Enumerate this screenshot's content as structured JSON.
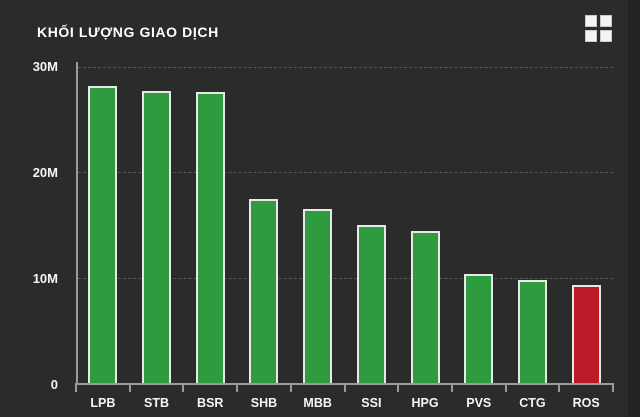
{
  "header": {
    "title": "KHỐI LƯỢNG GIAO DỊCH",
    "menu_icon": "grid-2x2-icon"
  },
  "colors": {
    "background": "#2b2b2b",
    "right_edge_strip": "#232323",
    "bar_green": "#2e9b3f",
    "bar_red": "#bb1b26",
    "bar_border": "#e8e8e8",
    "axis": "#9a9a9a",
    "gridline": "#565656",
    "text": "#ffffff"
  },
  "chart_data": {
    "type": "bar",
    "title": "KHỐI LƯỢNG GIAO DỊCH",
    "categories": [
      "LPB",
      "STB",
      "BSR",
      "SHB",
      "MBB",
      "SSI",
      "HPG",
      "PVS",
      "CTG",
      "ROS"
    ],
    "values": [
      28.2,
      27.7,
      27.6,
      17.5,
      16.5,
      15.0,
      14.5,
      10.4,
      9.8,
      9.4
    ],
    "value_unit": "M",
    "bar_colors": [
      "#2e9b3f",
      "#2e9b3f",
      "#2e9b3f",
      "#2e9b3f",
      "#2e9b3f",
      "#2e9b3f",
      "#2e9b3f",
      "#2e9b3f",
      "#2e9b3f",
      "#bb1b26"
    ],
    "xlabel": "",
    "ylabel": "",
    "ylim": [
      0,
      30
    ],
    "yticks": [
      {
        "value": 0,
        "label": "0"
      },
      {
        "value": 10,
        "label": "10M"
      },
      {
        "value": 20,
        "label": "20M"
      },
      {
        "value": 30,
        "label": "30M"
      }
    ],
    "grid": "horizontal-dashed",
    "legend": "none"
  }
}
